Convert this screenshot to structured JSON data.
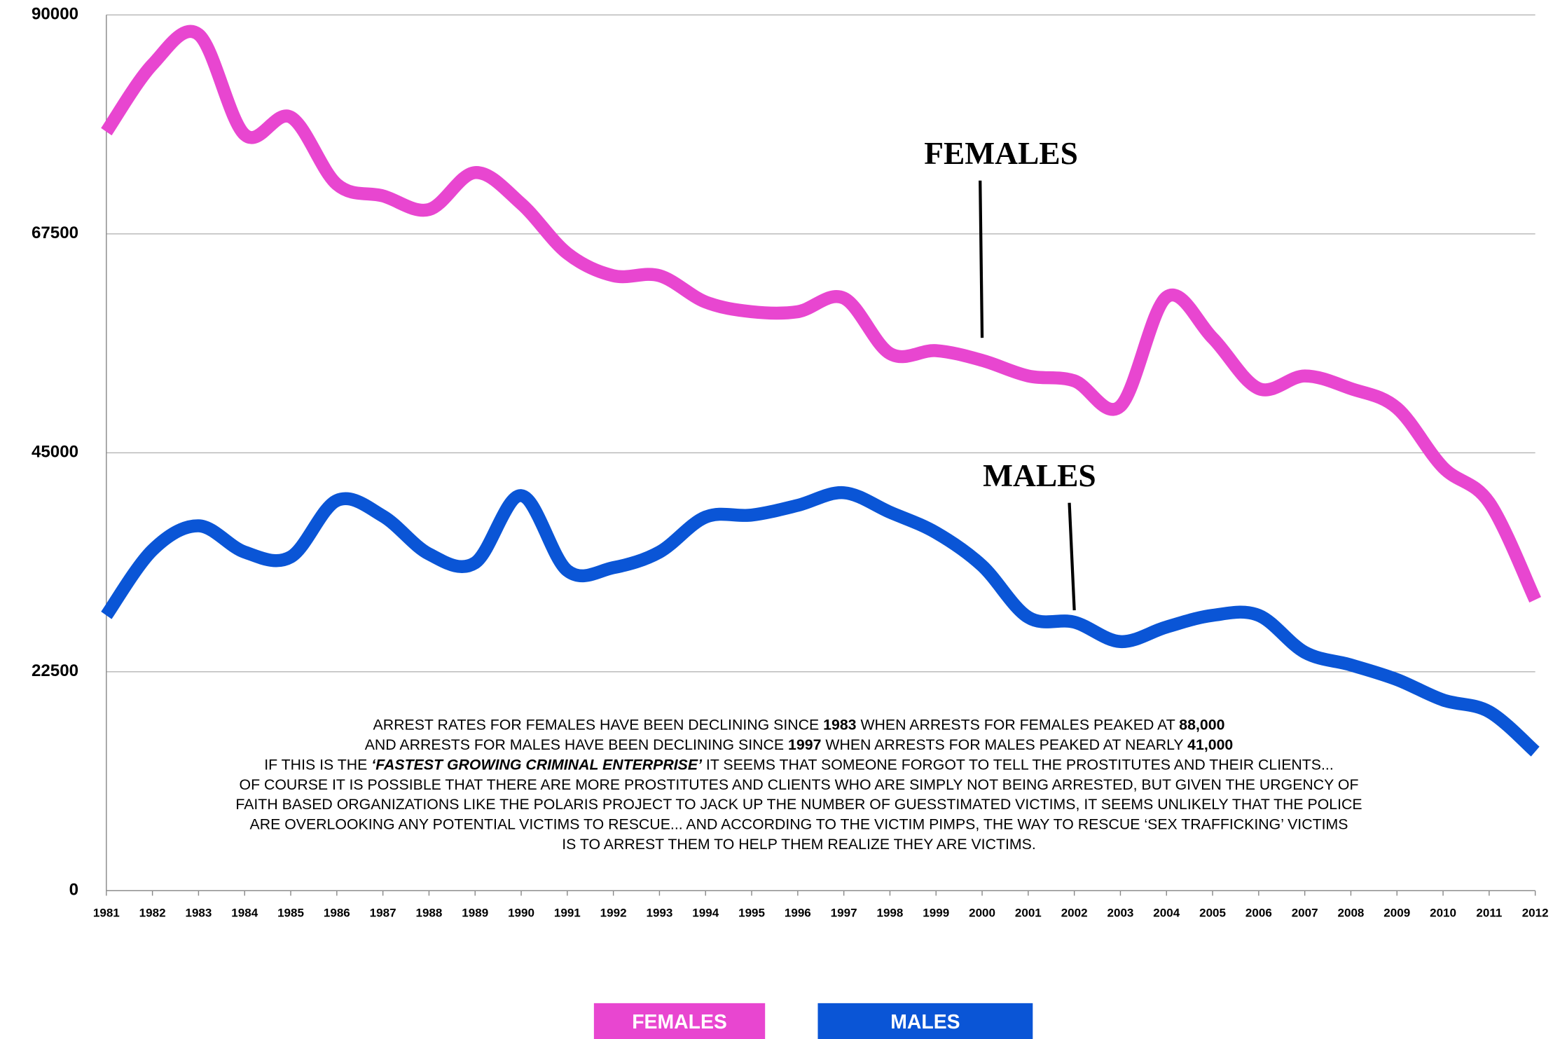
{
  "chart_data": {
    "type": "line",
    "x": [
      1981,
      1982,
      1983,
      1984,
      1985,
      1986,
      1987,
      1988,
      1989,
      1990,
      1991,
      1992,
      1993,
      1994,
      1995,
      1996,
      1997,
      1998,
      1999,
      2000,
      2001,
      2002,
      2003,
      2004,
      2005,
      2006,
      2007,
      2008,
      2009,
      2010,
      2011,
      2012
    ],
    "xlim": [
      1981,
      2012
    ],
    "ylim": [
      0,
      90000
    ],
    "yticks": [
      0,
      22500,
      45000,
      67500,
      90000
    ],
    "grid": true,
    "series": [
      {
        "name": "FEMALES",
        "color": "#e846d0",
        "values": [
          78000,
          84900,
          88000,
          77700,
          79500,
          72600,
          71400,
          70000,
          73800,
          70600,
          65500,
          63200,
          63200,
          60500,
          59500,
          59500,
          60900,
          55200,
          55500,
          54500,
          52900,
          52400,
          49800,
          61000,
          56800,
          51600,
          52900,
          51600,
          49600,
          43500,
          39900,
          29900
        ]
      },
      {
        "name": "MALES",
        "color": "#0a55d6",
        "values": [
          28300,
          35000,
          37500,
          34800,
          34300,
          40100,
          38500,
          34600,
          33700,
          40600,
          32900,
          33200,
          34800,
          38400,
          38600,
          39600,
          40900,
          38900,
          36800,
          33400,
          28100,
          27600,
          25600,
          27100,
          28300,
          28300,
          24500,
          23200,
          21700,
          19600,
          18400,
          14300
        ]
      }
    ],
    "annotations": [
      {
        "text": "FEMALES",
        "x": 2000,
        "y": 56000
      },
      {
        "text": "MALES",
        "x": 2002,
        "y": 28000
      }
    ],
    "note_lines": [
      [
        {
          "text": "ARREST RATES FOR FEMALES HAVE BEEN DECLINING SINCE "
        },
        {
          "text": "1983",
          "style": "bold"
        },
        {
          "text": "  WHEN ARRESTS FOR FEMALES PEAKED AT "
        },
        {
          "text": "88,000",
          "style": "bold"
        }
      ],
      [
        {
          "text": "AND ARRESTS FOR MALES HAVE BEEN DECLINING SINCE "
        },
        {
          "text": "1997",
          "style": "bold"
        },
        {
          "text": " WHEN ARRESTS FOR MALES PEAKED AT NEARLY "
        },
        {
          "text": "41,000",
          "style": "bold"
        }
      ],
      [
        {
          "text": "IF THIS IS THE "
        },
        {
          "text": "‘FASTEST GROWING CRIMINAL ENTERPRISE’",
          "style": "bold-italic"
        },
        {
          "text": " IT SEEMS THAT SOMEONE FORGOT TO TELL THE PROSTITUTES AND THEIR CLIENTS..."
        }
      ],
      [
        {
          "text": "OF COURSE IT IS POSSIBLE THAT THERE ARE MORE PROSTITUTES AND CLIENTS WHO ARE SIMPLY NOT BEING ARRESTED, BUT GIVEN THE URGENCY OF"
        }
      ],
      [
        {
          "text": "FAITH BASED ORGANIZATIONS LIKE THE POLARIS PROJECT TO JACK UP THE NUMBER OF GUESSTIMATED VICTIMS, IT SEEMS UNLIKELY THAT THE POLICE"
        }
      ],
      [
        {
          "text": "ARE OVERLOOKING ANY POTENTIAL VICTIMS TO RESCUE...  AND  ACCORDING TO THE VICTIM PIMPS, THE WAY TO RESCUE ‘SEX TRAFFICKING’ VICTIMS"
        }
      ],
      [
        {
          "text": "IS TO ARREST THEM TO HELP THEM REALIZE THEY ARE VICTIMS."
        }
      ]
    ]
  }
}
